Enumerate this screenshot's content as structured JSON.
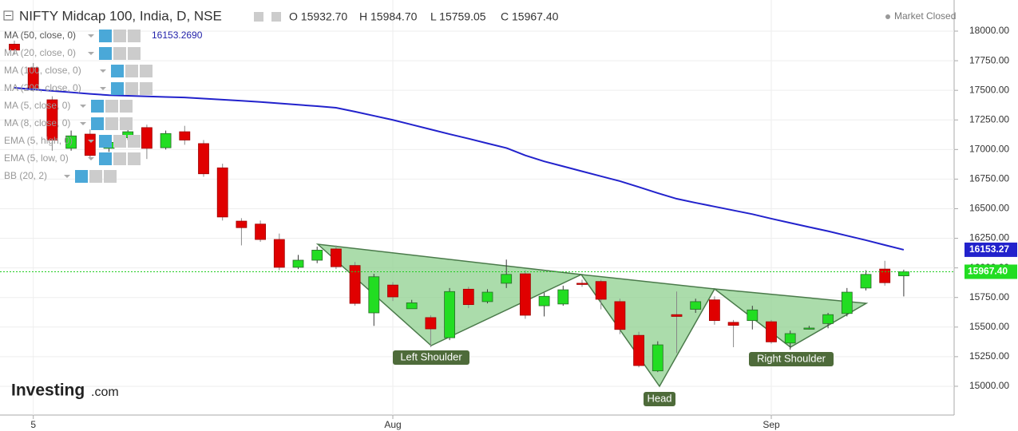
{
  "chart_data": {
    "type": "candlestick",
    "title": "NIFTY Midcap 100, India, D, NSE",
    "ohlc_labels": [
      "O 15932.70",
      "H 15984.70",
      "L 15759.05",
      "C 15967.40"
    ],
    "status": "Market Closed",
    "indicators": [
      "MA (50, close, 0)",
      "MA (20, close, 0)",
      "MA (100, close, 0)",
      "MA (200, close, 0)",
      "MA (5, close, 0)",
      "MA (8, close, 0)",
      "EMA (5, high, 0)",
      "EMA (5, low, 0)",
      "BB (20, 2)"
    ],
    "indicator_value": "16153.2690",
    "categories": [
      null,
      "5",
      null,
      null,
      null,
      null,
      null,
      null,
      null,
      null,
      null,
      null,
      null,
      null,
      null,
      null,
      null,
      null,
      null,
      null,
      "Aug",
      null,
      null,
      null,
      null,
      null,
      null,
      null,
      null,
      null,
      null,
      null,
      null,
      null,
      null,
      null,
      null,
      null,
      null,
      null,
      "Sep",
      null,
      null,
      null,
      null,
      null,
      null,
      null
    ],
    "open": [
      17890,
      17690,
      17420,
      17010,
      17130,
      17010,
      17100,
      17185,
      17015,
      17150,
      17050,
      16845,
      16395,
      16370,
      16240,
      16005,
      16065,
      16160,
      16020,
      15620,
      15855,
      15655,
      15580,
      15410,
      15820,
      15715,
      15870,
      15950,
      15680,
      15695,
      15870,
      15885,
      15715,
      15430,
      15130,
      15605,
      15650,
      15730,
      15540,
      15555,
      15545,
      15365,
      15490,
      15530,
      15615,
      15830,
      15990,
      15932.7
    ],
    "high": [
      17920,
      17730,
      17450,
      17160,
      17170,
      17090,
      17180,
      17210,
      17160,
      17200,
      17080,
      16880,
      16420,
      16400,
      16290,
      16110,
      16180,
      16190,
      16050,
      15950,
      15880,
      15730,
      15600,
      15830,
      15840,
      15820,
      16070,
      15980,
      15790,
      15850,
      15900,
      15900,
      15740,
      15460,
      15380,
      15800,
      15740,
      15760,
      15560,
      15680,
      15560,
      15470,
      15510,
      15620,
      15830,
      15980,
      16060,
      15984.7
    ],
    "low": [
      17800,
      17490,
      16990,
      16990,
      16920,
      16980,
      17080,
      16920,
      17000,
      17040,
      16770,
      16400,
      16190,
      16220,
      15980,
      15990,
      16040,
      15990,
      15680,
      15510,
      15720,
      15680,
      15330,
      15390,
      15660,
      15700,
      15830,
      15570,
      15590,
      15680,
      15840,
      15650,
      15440,
      15160,
      15120,
      15280,
      15620,
      15520,
      15330,
      15480,
      15360,
      15310,
      15480,
      15490,
      15590,
      15810,
      15850,
      15759.05
    ],
    "close": [
      17840,
      17520,
      17080,
      17115,
      16950,
      17060,
      17150,
      17010,
      17135,
      17080,
      16795,
      16430,
      16340,
      16240,
      16005,
      16065,
      16150,
      16010,
      15700,
      15925,
      15755,
      15705,
      15485,
      15800,
      15690,
      15795,
      15945,
      15600,
      15760,
      15815,
      15865,
      15735,
      15480,
      15175,
      15350,
      15590,
      15715,
      15555,
      15515,
      15645,
      15375,
      15445,
      15492,
      15605,
      15795,
      15945,
      15875,
      15967.4
    ],
    "close_label": "15967.40",
    "up_color": "#22dd22",
    "down_color": "#e00000",
    "ma": {
      "name": "MA (50, close, 0)",
      "color": "#2222cc",
      "values": [
        17521,
        17508,
        17495,
        17483,
        17470,
        17459,
        17454,
        17449,
        17444,
        17440,
        17430,
        17421,
        17412,
        17402,
        17390,
        17378,
        17366,
        17353,
        17320,
        17285,
        17250,
        17210,
        17170,
        17130,
        17092,
        17052,
        17013,
        16950,
        16900,
        16858,
        16816,
        16774,
        16733,
        16683,
        16632,
        16584,
        16550,
        16518,
        16486,
        16454,
        16416,
        16380,
        16345,
        16310,
        16272,
        16234,
        16193,
        16153.27
      ]
    },
    "annotations": [
      "Left Shoulder",
      "Head",
      "Right Shoulder"
    ],
    "logo": [
      "Investing",
      ".com"
    ],
    "ylim": [
      14757,
      18263
    ],
    "yticks": [
      {
        "value": 15000,
        "label": "15000.00"
      },
      {
        "value": 15250,
        "label": "15250.00"
      },
      {
        "value": 15500,
        "label": "15500.00"
      },
      {
        "value": 15750,
        "label": "15750.00"
      },
      {
        "value": 16000,
        "label": "16000.00"
      },
      {
        "value": 16250,
        "label": "16250.00"
      },
      {
        "value": 16500,
        "label": "16500.00"
      },
      {
        "value": 16750,
        "label": "16750.00"
      },
      {
        "value": 17000,
        "label": "17000.00"
      },
      {
        "value": 17250,
        "label": "17250.00"
      },
      {
        "value": 17500,
        "label": "17500.00"
      },
      {
        "value": 17750,
        "label": "17750.00"
      },
      {
        "value": 18000,
        "label": "18000.00"
      }
    ]
  }
}
